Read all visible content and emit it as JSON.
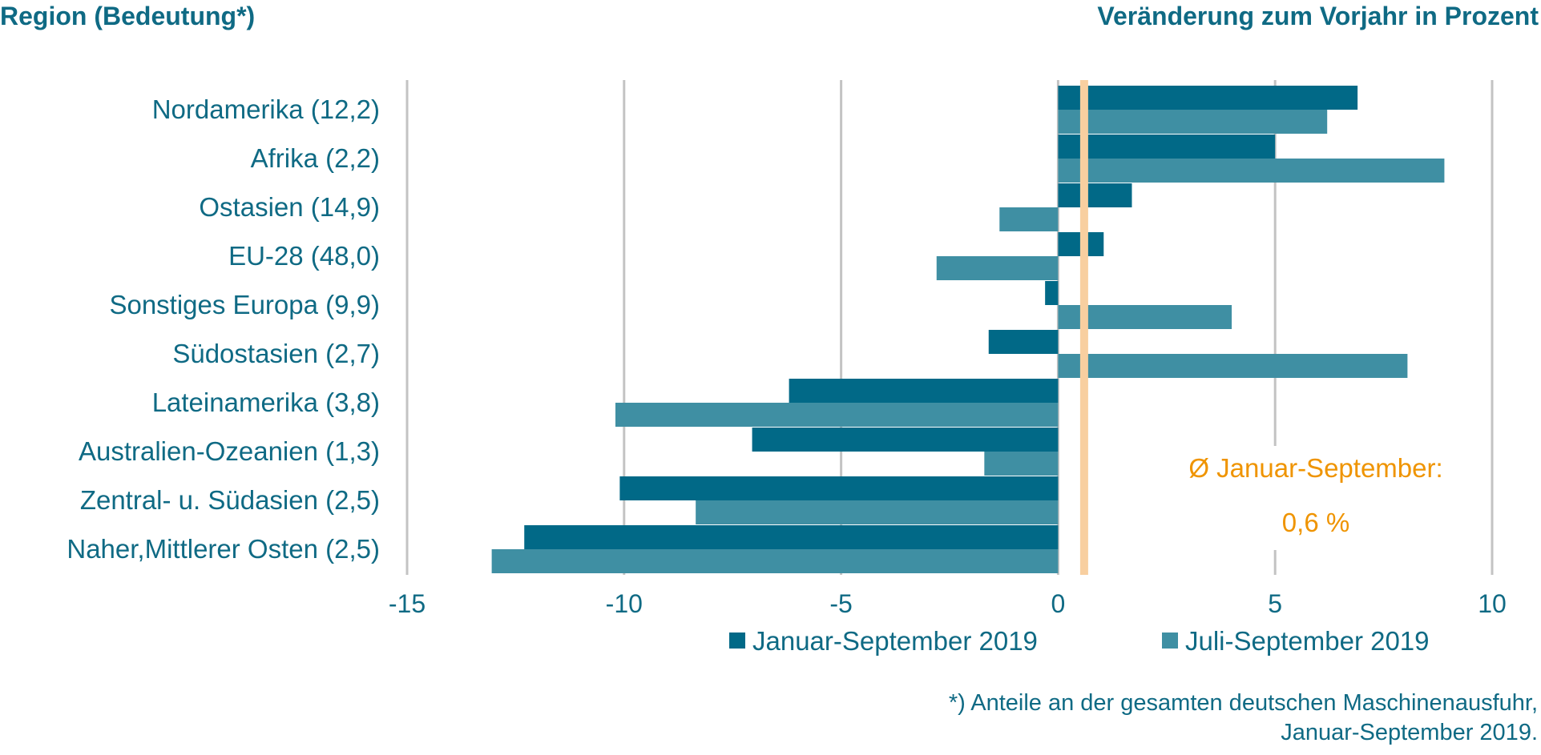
{
  "header": {
    "left_title": "Region (Bedeutung*)",
    "right_title": "Veränderung zum Vorjahr in Prozent"
  },
  "footnote": {
    "line1": "*) Anteile an der gesamten deutschen Maschinenausfuhr,",
    "line2": "Januar-September 2019."
  },
  "colors": {
    "series1": "#016987",
    "series2": "#3f8fa3",
    "reference_line": "#f8cfa0",
    "annotation": "#ef9400",
    "grid": "#c3c3c3",
    "text": "#0f6a84"
  },
  "chart_data": {
    "type": "bar",
    "orientation": "horizontal",
    "categories": [
      "Nordamerika (12,2)",
      "Afrika (2,2)",
      "Ostasien (14,9)",
      "EU-28 (48,0)",
      "Sonstiges Europa (9,9)",
      "Südostasien (2,7)",
      "Lateinamerika (3,8)",
      "Australien-Ozeanien (1,3)",
      "Zentral- u. Südasien (2,5)",
      "Naher,Mittlerer Osten (2,5)"
    ],
    "series": [
      {
        "name": "Januar-September 2019",
        "values": [
          6.9,
          5.0,
          1.7,
          1.05,
          -0.3,
          -1.6,
          -6.2,
          -7.05,
          -10.1,
          -12.3
        ]
      },
      {
        "name": "Juli-September 2019",
        "values": [
          6.2,
          8.9,
          -1.35,
          -2.8,
          4.0,
          8.05,
          -10.2,
          -1.7,
          -8.35,
          -13.05
        ]
      }
    ],
    "xlim": [
      -15,
      10
    ],
    "xticks": [
      -15,
      -10,
      -5,
      0,
      5,
      10
    ],
    "xtick_labels": [
      "-15",
      "-10",
      "-5",
      "0",
      "5",
      "10"
    ],
    "grid": true,
    "legend_position": "bottom",
    "reference_line": {
      "value": 0.6,
      "label_line1": "Ø Januar-September:",
      "label_line2": "0,6 %"
    }
  }
}
